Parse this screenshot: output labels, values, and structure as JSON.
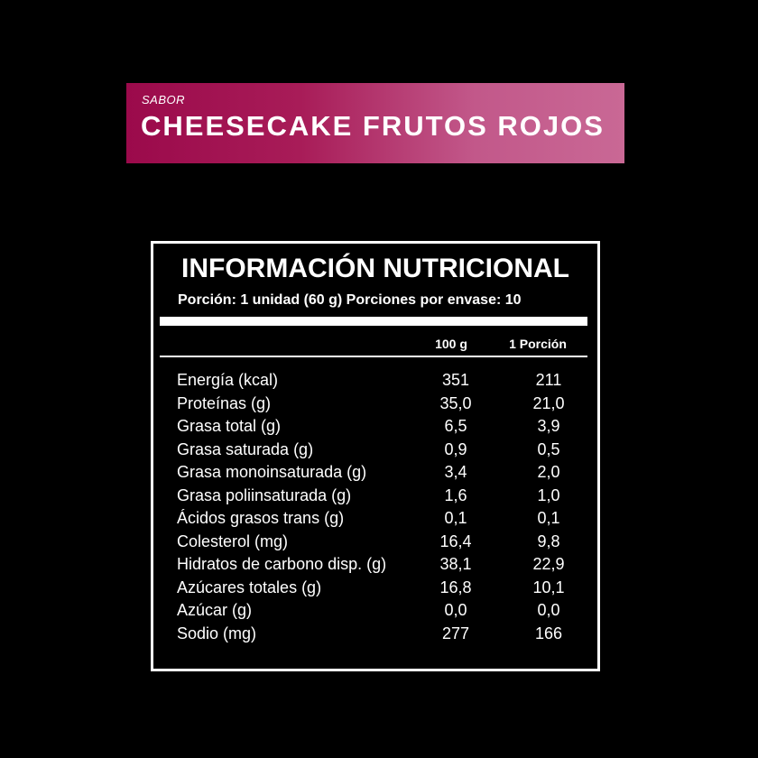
{
  "banner": {
    "label": "SABOR",
    "flavor": "CHEESECAKE FRUTOS ROJOS",
    "colors": [
      "#9b0a4b",
      "#c96895"
    ]
  },
  "table": {
    "title": "INFORMACIÓN NUTRICIONAL",
    "serving": "Porción: 1 unidad (60 g) Porciones por envase: 10",
    "headers": [
      "100 g",
      "1 Porción"
    ],
    "rows": [
      {
        "label": "Energía (kcal)",
        "per100": "351",
        "perServing": "211"
      },
      {
        "label": "Proteínas (g)",
        "per100": "35,0",
        "perServing": "21,0"
      },
      {
        "label": "Grasa total (g)",
        "per100": "6,5",
        "perServing": "3,9"
      },
      {
        "label": "Grasa saturada (g)",
        "per100": "0,9",
        "perServing": "0,5"
      },
      {
        "label": "Grasa monoinsaturada (g)",
        "per100": "3,4",
        "perServing": "2,0"
      },
      {
        "label": "Grasa poliinsaturada (g)",
        "per100": "1,6",
        "perServing": "1,0"
      },
      {
        "label": "Ácidos grasos trans (g)",
        "per100": "0,1",
        "perServing": "0,1"
      },
      {
        "label": "Colesterol (mg)",
        "per100": "16,4",
        "perServing": "9,8"
      },
      {
        "label": "Hidratos de carbono disp. (g)",
        "per100": "38,1",
        "perServing": "22,9"
      },
      {
        "label": "Azúcares totales (g)",
        "per100": "16,8",
        "perServing": "10,1"
      },
      {
        "label": "Azúcar (g)",
        "per100": "0,0",
        "perServing": "0,0"
      },
      {
        "label": "Sodio (mg)",
        "per100": "277",
        "perServing": "166"
      }
    ]
  }
}
